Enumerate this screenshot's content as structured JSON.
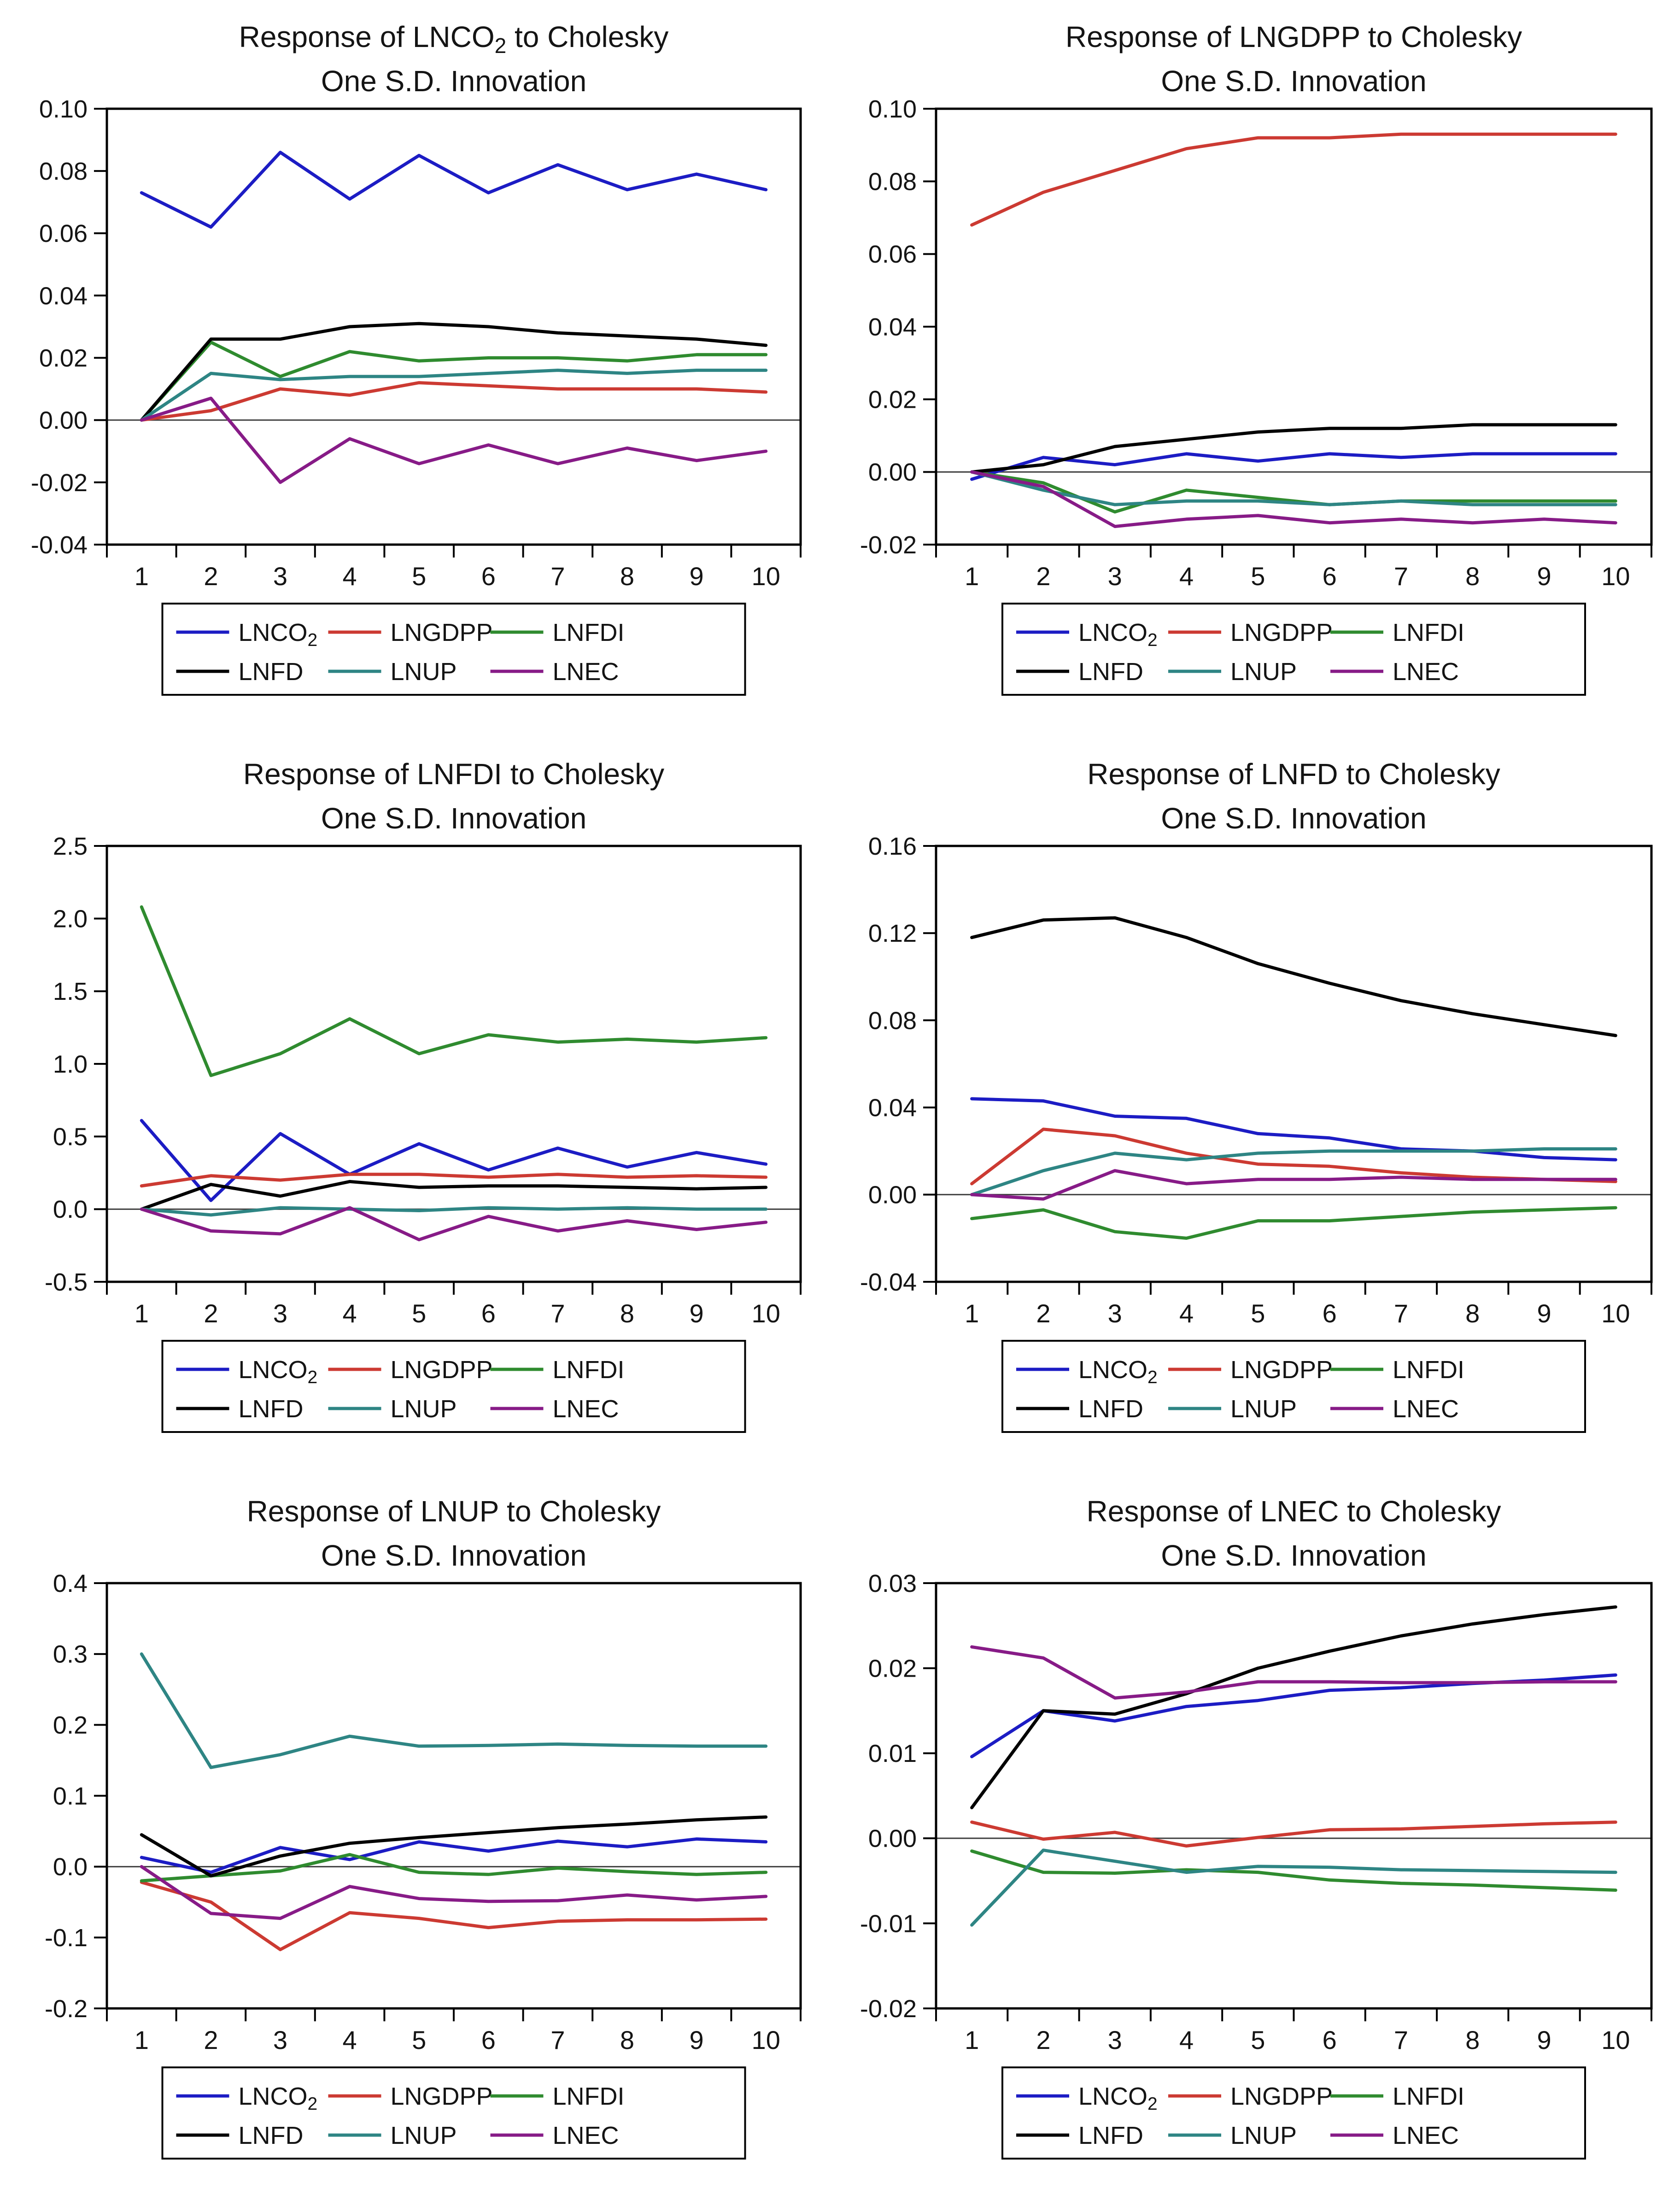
{
  "page": {
    "background": "#ffffff",
    "layout": "2x3-grid-of-irf-charts"
  },
  "colors": {
    "blue": "#1c1cc4",
    "red": "#cc3a32",
    "green": "#2f8b2f",
    "black": "#000000",
    "teal": "#2e8584",
    "purple": "#871b87",
    "axis": "#000000",
    "zero_line": "#404040",
    "text": "#141414"
  },
  "legend_labels": [
    {
      "pre": "LNCO",
      "sub": "2"
    },
    {
      "pre": "LNGDPP",
      "sub": ""
    },
    {
      "pre": "LNFDI",
      "sub": ""
    },
    {
      "pre": "LNFD",
      "sub": ""
    },
    {
      "pre": "LNUP",
      "sub": ""
    },
    {
      "pre": "LNEC",
      "sub": ""
    }
  ],
  "chart_data": [
    {
      "type": "line",
      "id": "lnco2",
      "title_line1": {
        "pre": "Response of LNCO",
        "sub": "2",
        "post": " to Cholesky"
      },
      "title_line2": "One S.D. Innovation",
      "x": [
        1,
        2,
        3,
        4,
        5,
        6,
        7,
        8,
        9,
        10
      ],
      "ylim": [
        -0.04,
        0.1
      ],
      "ytick_step": 0.02,
      "y_decimals": 2,
      "grid": false,
      "legend_position": "bottom",
      "series": [
        {
          "name": "LNCO2",
          "color_key": "blue",
          "values": [
            0.073,
            0.062,
            0.086,
            0.071,
            0.085,
            0.073,
            0.082,
            0.074,
            0.079,
            0.074
          ]
        },
        {
          "name": "LNGDPP",
          "color_key": "red",
          "values": [
            0.0,
            0.003,
            0.01,
            0.008,
            0.012,
            0.011,
            0.01,
            0.01,
            0.01,
            0.009
          ]
        },
        {
          "name": "LNFDI",
          "color_key": "green",
          "values": [
            0.0,
            0.025,
            0.014,
            0.022,
            0.019,
            0.02,
            0.02,
            0.019,
            0.021,
            0.021
          ]
        },
        {
          "name": "LNFD",
          "color_key": "black",
          "values": [
            0.0,
            0.026,
            0.026,
            0.03,
            0.031,
            0.03,
            0.028,
            0.027,
            0.026,
            0.024
          ]
        },
        {
          "name": "LNUP",
          "color_key": "teal",
          "values": [
            0.0,
            0.015,
            0.013,
            0.014,
            0.014,
            0.015,
            0.016,
            0.015,
            0.016,
            0.016
          ]
        },
        {
          "name": "LNEC",
          "color_key": "purple",
          "values": [
            0.0,
            0.007,
            -0.02,
            -0.006,
            -0.014,
            -0.008,
            -0.014,
            -0.009,
            -0.013,
            -0.01
          ]
        }
      ]
    },
    {
      "type": "line",
      "id": "lngdpp",
      "title_line1": {
        "pre": "Response of LNGDPP",
        "sub": "",
        "post": " to Cholesky"
      },
      "title_line2": "One S.D. Innovation",
      "x": [
        1,
        2,
        3,
        4,
        5,
        6,
        7,
        8,
        9,
        10
      ],
      "ylim": [
        -0.02,
        0.1
      ],
      "ytick_step": 0.02,
      "y_decimals": 2,
      "grid": false,
      "legend_position": "bottom",
      "series": [
        {
          "name": "LNCO2",
          "color_key": "blue",
          "values": [
            -0.002,
            0.004,
            0.002,
            0.005,
            0.003,
            0.005,
            0.004,
            0.005,
            0.005,
            0.005
          ]
        },
        {
          "name": "LNGDPP",
          "color_key": "red",
          "values": [
            0.068,
            0.077,
            0.083,
            0.089,
            0.092,
            0.092,
            0.093,
            0.093,
            0.093,
            0.093
          ]
        },
        {
          "name": "LNFDI",
          "color_key": "green",
          "values": [
            0.0,
            -0.003,
            -0.011,
            -0.005,
            -0.007,
            -0.009,
            -0.008,
            -0.008,
            -0.008,
            -0.008
          ]
        },
        {
          "name": "LNFD",
          "color_key": "black",
          "values": [
            0.0,
            0.002,
            0.007,
            0.009,
            0.011,
            0.012,
            0.012,
            0.013,
            0.013,
            0.013
          ]
        },
        {
          "name": "LNUP",
          "color_key": "teal",
          "values": [
            0.0,
            -0.005,
            -0.009,
            -0.008,
            -0.008,
            -0.009,
            -0.008,
            -0.009,
            -0.009,
            -0.009
          ]
        },
        {
          "name": "LNEC",
          "color_key": "purple",
          "values": [
            0.0,
            -0.004,
            -0.015,
            -0.013,
            -0.012,
            -0.014,
            -0.013,
            -0.014,
            -0.013,
            -0.014
          ]
        }
      ]
    },
    {
      "type": "line",
      "id": "lnfdi",
      "title_line1": {
        "pre": "Response of LNFDI",
        "sub": "",
        "post": " to Cholesky"
      },
      "title_line2": "One S.D. Innovation",
      "x": [
        1,
        2,
        3,
        4,
        5,
        6,
        7,
        8,
        9,
        10
      ],
      "ylim": [
        -0.5,
        2.5
      ],
      "ytick_step": 0.5,
      "y_decimals": 1,
      "grid": false,
      "legend_position": "bottom",
      "series": [
        {
          "name": "LNCO2",
          "color_key": "blue",
          "values": [
            0.61,
            0.06,
            0.52,
            0.24,
            0.45,
            0.27,
            0.42,
            0.29,
            0.39,
            0.31
          ]
        },
        {
          "name": "LNGDPP",
          "color_key": "red",
          "values": [
            0.16,
            0.23,
            0.2,
            0.24,
            0.24,
            0.22,
            0.24,
            0.22,
            0.23,
            0.22
          ]
        },
        {
          "name": "LNFDI",
          "color_key": "green",
          "values": [
            2.08,
            0.92,
            1.07,
            1.31,
            1.07,
            1.2,
            1.15,
            1.17,
            1.15,
            1.18
          ]
        },
        {
          "name": "LNFD",
          "color_key": "black",
          "values": [
            0.0,
            0.17,
            0.09,
            0.19,
            0.15,
            0.16,
            0.16,
            0.15,
            0.14,
            0.15
          ]
        },
        {
          "name": "LNUP",
          "color_key": "teal",
          "values": [
            0.0,
            -0.04,
            0.01,
            0.0,
            -0.01,
            0.01,
            0.0,
            0.01,
            0.0,
            0.0
          ]
        },
        {
          "name": "LNEC",
          "color_key": "purple",
          "values": [
            0.0,
            -0.15,
            -0.17,
            0.01,
            -0.21,
            -0.05,
            -0.15,
            -0.08,
            -0.14,
            -0.09
          ]
        }
      ]
    },
    {
      "type": "line",
      "id": "lnfd",
      "title_line1": {
        "pre": "Response of LNFD",
        "sub": "",
        "post": " to Cholesky"
      },
      "title_line2": "One S.D. Innovation",
      "x": [
        1,
        2,
        3,
        4,
        5,
        6,
        7,
        8,
        9,
        10
      ],
      "ylim": [
        -0.04,
        0.16
      ],
      "ytick_step": 0.04,
      "y_decimals": 2,
      "grid": false,
      "legend_position": "bottom",
      "series": [
        {
          "name": "LNCO2",
          "color_key": "blue",
          "values": [
            0.044,
            0.043,
            0.036,
            0.035,
            0.028,
            0.026,
            0.021,
            0.02,
            0.017,
            0.016
          ]
        },
        {
          "name": "LNGDPP",
          "color_key": "red",
          "values": [
            0.005,
            0.03,
            0.027,
            0.019,
            0.014,
            0.013,
            0.01,
            0.008,
            0.007,
            0.006
          ]
        },
        {
          "name": "LNFDI",
          "color_key": "green",
          "values": [
            -0.011,
            -0.007,
            -0.017,
            -0.02,
            -0.012,
            -0.012,
            -0.01,
            -0.008,
            -0.007,
            -0.006
          ]
        },
        {
          "name": "LNFD",
          "color_key": "black",
          "values": [
            0.118,
            0.126,
            0.127,
            0.118,
            0.106,
            0.097,
            0.089,
            0.083,
            0.078,
            0.073
          ]
        },
        {
          "name": "LNUP",
          "color_key": "teal",
          "values": [
            0.0,
            0.011,
            0.019,
            0.016,
            0.019,
            0.02,
            0.02,
            0.02,
            0.021,
            0.021
          ]
        },
        {
          "name": "LNEC",
          "color_key": "purple",
          "values": [
            0.0,
            -0.002,
            0.011,
            0.005,
            0.007,
            0.007,
            0.008,
            0.007,
            0.007,
            0.007
          ]
        }
      ]
    },
    {
      "type": "line",
      "id": "lnup",
      "title_line1": {
        "pre": "Response of LNUP",
        "sub": "",
        "post": " to Cholesky"
      },
      "title_line2": "One S.D. Innovation",
      "x": [
        1,
        2,
        3,
        4,
        5,
        6,
        7,
        8,
        9,
        10
      ],
      "ylim": [
        -0.2,
        0.4
      ],
      "ytick_step": 0.1,
      "y_decimals": 1,
      "grid": false,
      "legend_position": "bottom",
      "series": [
        {
          "name": "LNCO2",
          "color_key": "blue",
          "values": [
            0.013,
            -0.008,
            0.027,
            0.01,
            0.035,
            0.022,
            0.036,
            0.028,
            0.039,
            0.035
          ]
        },
        {
          "name": "LNGDPP",
          "color_key": "red",
          "values": [
            -0.022,
            -0.05,
            -0.117,
            -0.065,
            -0.073,
            -0.086,
            -0.077,
            -0.075,
            -0.075,
            -0.074
          ]
        },
        {
          "name": "LNFDI",
          "color_key": "green",
          "values": [
            -0.02,
            -0.013,
            -0.006,
            0.017,
            -0.008,
            -0.011,
            -0.002,
            -0.007,
            -0.011,
            -0.008
          ]
        },
        {
          "name": "LNFD",
          "color_key": "black",
          "values": [
            0.045,
            -0.013,
            0.015,
            0.033,
            0.041,
            0.048,
            0.055,
            0.06,
            0.066,
            0.07
          ]
        },
        {
          "name": "LNUP",
          "color_key": "teal",
          "values": [
            0.3,
            0.14,
            0.158,
            0.184,
            0.17,
            0.171,
            0.173,
            0.171,
            0.17,
            0.17
          ]
        },
        {
          "name": "LNEC",
          "color_key": "purple",
          "values": [
            0.0,
            -0.066,
            -0.073,
            -0.028,
            -0.045,
            -0.049,
            -0.048,
            -0.04,
            -0.047,
            -0.042
          ]
        }
      ]
    },
    {
      "type": "line",
      "id": "lnec",
      "title_line1": {
        "pre": "Response of LNEC",
        "sub": "",
        "post": " to Cholesky"
      },
      "title_line2": "One S.D. Innovation",
      "x": [
        1,
        2,
        3,
        4,
        5,
        6,
        7,
        8,
        9,
        10
      ],
      "ylim": [
        -0.02,
        0.03
      ],
      "ytick_step": 0.01,
      "y_decimals": 2,
      "grid": false,
      "legend_position": "bottom",
      "series": [
        {
          "name": "LNCO2",
          "color_key": "blue",
          "values": [
            0.0096,
            0.015,
            0.0138,
            0.0155,
            0.0162,
            0.0174,
            0.0177,
            0.0182,
            0.0186,
            0.0192
          ]
        },
        {
          "name": "LNGDPP",
          "color_key": "red",
          "values": [
            0.0019,
            -0.0001,
            0.0007,
            -0.0009,
            0.0001,
            0.001,
            0.0011,
            0.0014,
            0.0017,
            0.0019
          ]
        },
        {
          "name": "LNFDI",
          "color_key": "green",
          "values": [
            -0.0015,
            -0.004,
            -0.0041,
            -0.0037,
            -0.004,
            -0.0049,
            -0.0053,
            -0.0055,
            -0.0058,
            -0.0061
          ]
        },
        {
          "name": "LNFD",
          "color_key": "black",
          "values": [
            0.0036,
            0.015,
            0.0146,
            0.017,
            0.02,
            0.022,
            0.0238,
            0.0252,
            0.0263,
            0.0272
          ]
        },
        {
          "name": "LNUP",
          "color_key": "teal",
          "values": [
            -0.0102,
            -0.0014,
            -0.0027,
            -0.004,
            -0.0033,
            -0.0034,
            -0.0037,
            -0.0038,
            -0.0039,
            -0.004
          ]
        },
        {
          "name": "LNEC",
          "color_key": "purple",
          "values": [
            0.0225,
            0.0212,
            0.0165,
            0.0172,
            0.0184,
            0.0184,
            0.0183,
            0.0183,
            0.0184,
            0.0184
          ]
        }
      ]
    }
  ]
}
